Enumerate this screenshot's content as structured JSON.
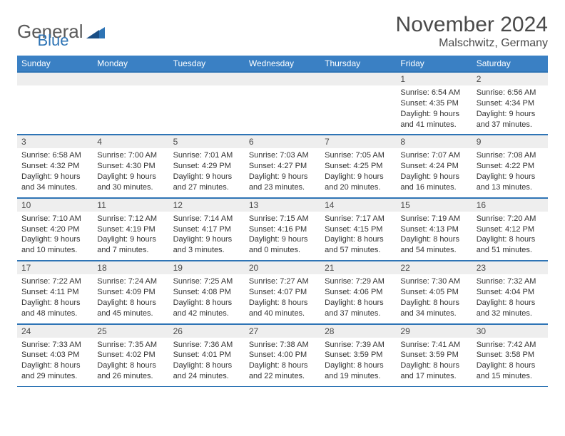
{
  "logo": {
    "general": "General",
    "blue": "Blue"
  },
  "title": "November 2024",
  "location": "Malschwitz, Germany",
  "colors": {
    "header_bg": "#3a80c4",
    "header_text": "#ffffff",
    "line": "#2e74b5",
    "daynum_bg": "#eeeeee",
    "text": "#333333"
  },
  "weekdays": [
    "Sunday",
    "Monday",
    "Tuesday",
    "Wednesday",
    "Thursday",
    "Friday",
    "Saturday"
  ],
  "weeks": [
    [
      null,
      null,
      null,
      null,
      null,
      {
        "n": "1",
        "sr": "Sunrise: 6:54 AM",
        "ss": "Sunset: 4:35 PM",
        "d1": "Daylight: 9 hours",
        "d2": "and 41 minutes."
      },
      {
        "n": "2",
        "sr": "Sunrise: 6:56 AM",
        "ss": "Sunset: 4:34 PM",
        "d1": "Daylight: 9 hours",
        "d2": "and 37 minutes."
      }
    ],
    [
      {
        "n": "3",
        "sr": "Sunrise: 6:58 AM",
        "ss": "Sunset: 4:32 PM",
        "d1": "Daylight: 9 hours",
        "d2": "and 34 minutes."
      },
      {
        "n": "4",
        "sr": "Sunrise: 7:00 AM",
        "ss": "Sunset: 4:30 PM",
        "d1": "Daylight: 9 hours",
        "d2": "and 30 minutes."
      },
      {
        "n": "5",
        "sr": "Sunrise: 7:01 AM",
        "ss": "Sunset: 4:29 PM",
        "d1": "Daylight: 9 hours",
        "d2": "and 27 minutes."
      },
      {
        "n": "6",
        "sr": "Sunrise: 7:03 AM",
        "ss": "Sunset: 4:27 PM",
        "d1": "Daylight: 9 hours",
        "d2": "and 23 minutes."
      },
      {
        "n": "7",
        "sr": "Sunrise: 7:05 AM",
        "ss": "Sunset: 4:25 PM",
        "d1": "Daylight: 9 hours",
        "d2": "and 20 minutes."
      },
      {
        "n": "8",
        "sr": "Sunrise: 7:07 AM",
        "ss": "Sunset: 4:24 PM",
        "d1": "Daylight: 9 hours",
        "d2": "and 16 minutes."
      },
      {
        "n": "9",
        "sr": "Sunrise: 7:08 AM",
        "ss": "Sunset: 4:22 PM",
        "d1": "Daylight: 9 hours",
        "d2": "and 13 minutes."
      }
    ],
    [
      {
        "n": "10",
        "sr": "Sunrise: 7:10 AM",
        "ss": "Sunset: 4:20 PM",
        "d1": "Daylight: 9 hours",
        "d2": "and 10 minutes."
      },
      {
        "n": "11",
        "sr": "Sunrise: 7:12 AM",
        "ss": "Sunset: 4:19 PM",
        "d1": "Daylight: 9 hours",
        "d2": "and 7 minutes."
      },
      {
        "n": "12",
        "sr": "Sunrise: 7:14 AM",
        "ss": "Sunset: 4:17 PM",
        "d1": "Daylight: 9 hours",
        "d2": "and 3 minutes."
      },
      {
        "n": "13",
        "sr": "Sunrise: 7:15 AM",
        "ss": "Sunset: 4:16 PM",
        "d1": "Daylight: 9 hours",
        "d2": "and 0 minutes."
      },
      {
        "n": "14",
        "sr": "Sunrise: 7:17 AM",
        "ss": "Sunset: 4:15 PM",
        "d1": "Daylight: 8 hours",
        "d2": "and 57 minutes."
      },
      {
        "n": "15",
        "sr": "Sunrise: 7:19 AM",
        "ss": "Sunset: 4:13 PM",
        "d1": "Daylight: 8 hours",
        "d2": "and 54 minutes."
      },
      {
        "n": "16",
        "sr": "Sunrise: 7:20 AM",
        "ss": "Sunset: 4:12 PM",
        "d1": "Daylight: 8 hours",
        "d2": "and 51 minutes."
      }
    ],
    [
      {
        "n": "17",
        "sr": "Sunrise: 7:22 AM",
        "ss": "Sunset: 4:11 PM",
        "d1": "Daylight: 8 hours",
        "d2": "and 48 minutes."
      },
      {
        "n": "18",
        "sr": "Sunrise: 7:24 AM",
        "ss": "Sunset: 4:09 PM",
        "d1": "Daylight: 8 hours",
        "d2": "and 45 minutes."
      },
      {
        "n": "19",
        "sr": "Sunrise: 7:25 AM",
        "ss": "Sunset: 4:08 PM",
        "d1": "Daylight: 8 hours",
        "d2": "and 42 minutes."
      },
      {
        "n": "20",
        "sr": "Sunrise: 7:27 AM",
        "ss": "Sunset: 4:07 PM",
        "d1": "Daylight: 8 hours",
        "d2": "and 40 minutes."
      },
      {
        "n": "21",
        "sr": "Sunrise: 7:29 AM",
        "ss": "Sunset: 4:06 PM",
        "d1": "Daylight: 8 hours",
        "d2": "and 37 minutes."
      },
      {
        "n": "22",
        "sr": "Sunrise: 7:30 AM",
        "ss": "Sunset: 4:05 PM",
        "d1": "Daylight: 8 hours",
        "d2": "and 34 minutes."
      },
      {
        "n": "23",
        "sr": "Sunrise: 7:32 AM",
        "ss": "Sunset: 4:04 PM",
        "d1": "Daylight: 8 hours",
        "d2": "and 32 minutes."
      }
    ],
    [
      {
        "n": "24",
        "sr": "Sunrise: 7:33 AM",
        "ss": "Sunset: 4:03 PM",
        "d1": "Daylight: 8 hours",
        "d2": "and 29 minutes."
      },
      {
        "n": "25",
        "sr": "Sunrise: 7:35 AM",
        "ss": "Sunset: 4:02 PM",
        "d1": "Daylight: 8 hours",
        "d2": "and 26 minutes."
      },
      {
        "n": "26",
        "sr": "Sunrise: 7:36 AM",
        "ss": "Sunset: 4:01 PM",
        "d1": "Daylight: 8 hours",
        "d2": "and 24 minutes."
      },
      {
        "n": "27",
        "sr": "Sunrise: 7:38 AM",
        "ss": "Sunset: 4:00 PM",
        "d1": "Daylight: 8 hours",
        "d2": "and 22 minutes."
      },
      {
        "n": "28",
        "sr": "Sunrise: 7:39 AM",
        "ss": "Sunset: 3:59 PM",
        "d1": "Daylight: 8 hours",
        "d2": "and 19 minutes."
      },
      {
        "n": "29",
        "sr": "Sunrise: 7:41 AM",
        "ss": "Sunset: 3:59 PM",
        "d1": "Daylight: 8 hours",
        "d2": "and 17 minutes."
      },
      {
        "n": "30",
        "sr": "Sunrise: 7:42 AM",
        "ss": "Sunset: 3:58 PM",
        "d1": "Daylight: 8 hours",
        "d2": "and 15 minutes."
      }
    ]
  ]
}
